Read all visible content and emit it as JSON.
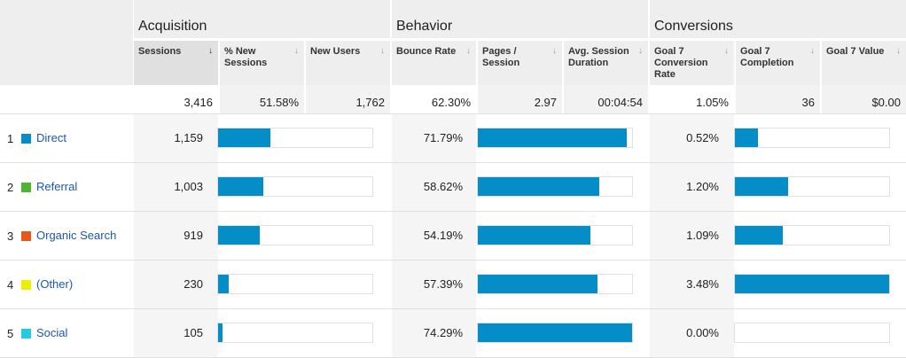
{
  "groups": {
    "acquisition": "Acquisition",
    "behavior": "Behavior",
    "conversions": "Conversions"
  },
  "columns": {
    "sessions": "Sessions",
    "pct_new_sessions": "% New Sessions",
    "new_users": "New Users",
    "bounce_rate": "Bounce Rate",
    "pages_session": "Pages / Session",
    "avg_session_duration": "Avg. Session Duration",
    "goal7_conv_rate": "Goal 7 Conversion Rate",
    "goal7_completion": "Goal 7 Completion",
    "goal7_value": "Goal 7 Value"
  },
  "sort_arrow_active": "↓",
  "sort_arrow": "↓",
  "totals": {
    "sessions": "3,416",
    "pct_new_sessions": "51.58%",
    "new_users": "1,762",
    "bounce_rate": "62.30%",
    "pages_session": "2.97",
    "avg_session_duration": "00:04:54",
    "goal7_conv_rate": "1.05%",
    "goal7_completion": "36",
    "goal7_value": "$0.00"
  },
  "rows": [
    {
      "num": "1",
      "label": "Direct",
      "color": "#058dc7",
      "sessions": "1,159",
      "sessions_share": 33.93,
      "bounce_rate": "71.79%",
      "bounce_share": 96.6,
      "conv_rate": "0.52%",
      "conv_share": 14.9
    },
    {
      "num": "2",
      "label": "Referral",
      "color": "#50b432",
      "sessions": "1,003",
      "sessions_share": 29.36,
      "bounce_rate": "58.62%",
      "bounce_share": 78.9,
      "conv_rate": "1.20%",
      "conv_share": 34.5
    },
    {
      "num": "3",
      "label": "Organic Search",
      "color": "#ed561b",
      "sessions": "919",
      "sessions_share": 26.9,
      "bounce_rate": "54.19%",
      "bounce_share": 72.9,
      "conv_rate": "1.09%",
      "conv_share": 31.3
    },
    {
      "num": "4",
      "label": "(Other)",
      "color": "#edef00",
      "sessions": "230",
      "sessions_share": 6.73,
      "bounce_rate": "57.39%",
      "bounce_share": 77.3,
      "conv_rate": "3.48%",
      "conv_share": 100
    },
    {
      "num": "5",
      "label": "Social",
      "color": "#24cbe5",
      "sessions": "105",
      "sessions_share": 3.07,
      "bounce_rate": "74.29%",
      "bounce_share": 100,
      "conv_rate": "0.00%",
      "conv_share": 0
    }
  ]
}
